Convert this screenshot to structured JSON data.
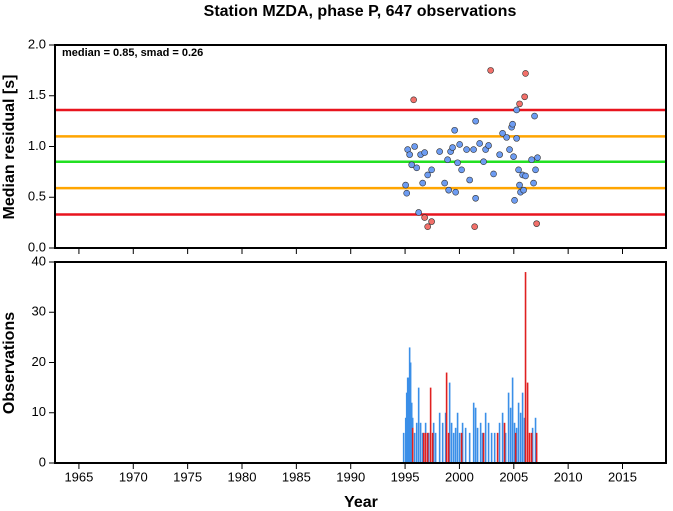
{
  "chart_data": [
    {
      "type": "scatter",
      "title": "Station MZDA, phase P, 647 observations",
      "y_label": "Median residual [s]",
      "annotation": "median = 0.85, smad = 0.26",
      "xlim": [
        1962.8,
        2019.0
      ],
      "xticks": [
        1965,
        1970,
        1975,
        1980,
        1985,
        1990,
        1995,
        2000,
        2005,
        2010,
        2015
      ],
      "ylim": [
        0,
        2
      ],
      "yticks": [
        {
          "value": 0,
          "label": "0.0"
        },
        {
          "value": 0.5,
          "label": "0.5"
        },
        {
          "value": 1,
          "label": "1.0"
        },
        {
          "value": 1.5,
          "label": "1.5"
        },
        {
          "value": 2,
          "label": "2.0"
        }
      ],
      "hlines": [
        {
          "value": 1.36,
          "color": "#e8141e"
        },
        {
          "value": 1.1,
          "color": "#ffa500"
        },
        {
          "value": 0.85,
          "color": "#22e022"
        },
        {
          "value": 0.59,
          "color": "#ffa500"
        },
        {
          "value": 0.33,
          "color": "#e8141e"
        }
      ],
      "series": [
        {
          "color": "#6d9cf2",
          "x": [
            1995.05,
            1995.15,
            1995.24,
            1995.42,
            1995.61,
            1995.88,
            1996.07,
            1996.25,
            1996.43,
            1996.62,
            1996.8,
            1997.08,
            1997.44,
            1998.18,
            1998.64,
            1998.91,
            1999.01,
            1999.19,
            1999.37,
            1999.56,
            1999.65,
            1999.83,
            2000.02,
            2000.2,
            2000.66,
            2000.94,
            2001.3,
            2001.49,
            2001.49,
            2001.86,
            2002.22,
            2002.41,
            2002.68,
            2003.14,
            2003.7,
            2003.97,
            2004.34,
            2004.61,
            2004.8,
            2004.89,
            2004.98,
            2005.07,
            2005.26,
            2005.26,
            2005.44,
            2005.53,
            2005.62,
            2005.81,
            2005.9,
            2006.08,
            2006.64,
            2006.82,
            2006.91,
            2007.0,
            2007.18
          ],
          "values": [
            0.62,
            0.54,
            0.97,
            0.92,
            0.82,
            1.0,
            0.79,
            0.35,
            0.92,
            0.64,
            0.94,
            0.72,
            0.77,
            0.95,
            0.64,
            0.87,
            0.57,
            0.95,
            0.99,
            1.16,
            0.55,
            0.84,
            1.02,
            0.77,
            0.97,
            0.67,
            0.97,
            0.49,
            1.25,
            1.03,
            0.85,
            0.97,
            1.01,
            0.73,
            0.92,
            1.13,
            1.09,
            0.97,
            1.19,
            1.22,
            0.9,
            0.47,
            1.36,
            1.08,
            0.77,
            0.62,
            0.55,
            0.72,
            0.57,
            0.71,
            0.87,
            0.64,
            1.3,
            0.77,
            0.89
          ]
        },
        {
          "color": "#f2706a",
          "x": [
            1995.79,
            1996.8,
            1997.08,
            1997.44,
            2001.4,
            2002.87,
            2005.53,
            2006.0,
            2006.08,
            2007.1
          ],
          "values": [
            1.46,
            0.3,
            0.21,
            0.26,
            0.21,
            1.75,
            1.42,
            1.49,
            1.72,
            0.24
          ]
        }
      ]
    },
    {
      "type": "bar",
      "x_label": "Year",
      "y_label": "Observations",
      "xlim": [
        1962.8,
        2019.0
      ],
      "xticks": [
        1965,
        1970,
        1975,
        1980,
        1985,
        1990,
        1995,
        2000,
        2005,
        2010,
        2015
      ],
      "ylim": [
        0,
        40
      ],
      "yticks": [
        0,
        10,
        20,
        30,
        40
      ],
      "series": [
        {
          "color": "#3a8fe8",
          "x": [
            1994.87,
            1995.06,
            1995.15,
            1995.24,
            1995.33,
            1995.42,
            1995.51,
            1995.61,
            1995.7,
            1995.88,
            1996.07,
            1996.25,
            1996.43,
            1996.62,
            1996.89,
            1997.17,
            1997.63,
            1997.81,
            1998.18,
            1998.46,
            1998.73,
            1999.1,
            1999.28,
            1999.47,
            1999.65,
            1999.83,
            2000.02,
            2000.29,
            2000.57,
            2000.94,
            2001.31,
            2001.49,
            2001.67,
            2001.95,
            2002.13,
            2002.41,
            2002.68,
            2002.96,
            2003.24,
            2003.69,
            2003.97,
            2004.25,
            2004.52,
            2004.71,
            2004.89,
            2005.07,
            2005.26,
            2005.44,
            2005.63,
            2005.81,
            2005.99,
            2006.73,
            2007.0
          ],
          "values": [
            6,
            9,
            14,
            17,
            17,
            23,
            20,
            12,
            9,
            6,
            8,
            15,
            8,
            6,
            8,
            6,
            8,
            6,
            10,
            8,
            10,
            16,
            8,
            6,
            7,
            10,
            6,
            8,
            7,
            6,
            12,
            11,
            7,
            8,
            6,
            10,
            8,
            6,
            6,
            8,
            10,
            6,
            14,
            11,
            17,
            8,
            7,
            12,
            10,
            14,
            9,
            7,
            9
          ]
        },
        {
          "color": "#e02020",
          "x": [
            1995.7,
            1996.71,
            1996.89,
            1997.08,
            1997.35,
            1997.54,
            1998.82,
            1999.01,
            2000.2,
            2002.22,
            2003.51,
            2004.15,
            2005.17,
            2006.08,
            2006.27,
            2006.45,
            2006.64,
            2007.1
          ],
          "values": [
            7,
            6,
            6,
            6,
            15,
            6,
            18,
            6,
            6,
            6,
            6,
            8,
            6,
            38,
            16,
            6,
            6,
            6
          ]
        }
      ]
    }
  ]
}
